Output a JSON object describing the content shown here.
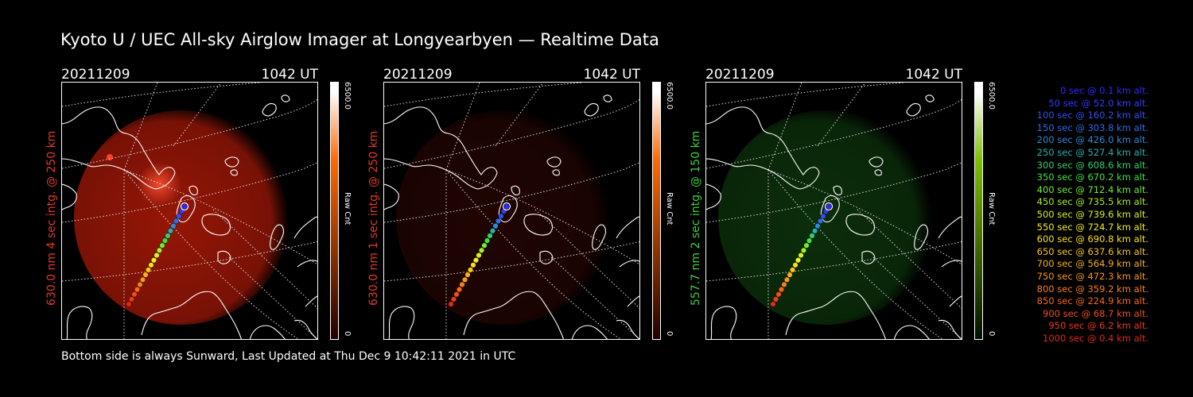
{
  "title": "Kyoto U / UEC All-sky Airglow Imager at Longyearbyen — Realtime Data",
  "footer": "Bottom side is always Sunward, Last Updated at Thu Dec  9 10:42:11 2021 in UTC",
  "panels": [
    {
      "date": "20211209",
      "time": "1042 UT",
      "side_label": "630.0 nm 4 sec intg. @ 250 km",
      "side_color": "#e03a2a",
      "glow_color": "#b01a08",
      "glow_strength": 0.85,
      "colorbar_max": "6500.0",
      "colorbar_min": "0",
      "colorbar_unit": "Raw Cnt",
      "colorbar_top": "#ffffff",
      "colorbar_mid": "#ff6a00",
      "colorbar_bottom": "#200000"
    },
    {
      "date": "20211209",
      "time": "1042 UT",
      "side_label": "630.0 nm 1 sec intg. @ 250 km",
      "side_color": "#e03a2a",
      "glow_color": "#3a0804",
      "glow_strength": 0.55,
      "colorbar_max": "6500.0",
      "colorbar_min": "0",
      "colorbar_unit": "Raw Cnt",
      "colorbar_top": "#ffffff",
      "colorbar_mid": "#ff6a00",
      "colorbar_bottom": "#200000"
    },
    {
      "date": "20211209",
      "time": "1042 UT",
      "side_label": "557.7 nm 2 sec intg. @ 150 km",
      "side_color": "#3cd23c",
      "glow_color": "#0e3a0e",
      "glow_strength": 0.8,
      "colorbar_max": "6500.0",
      "colorbar_min": "0",
      "colorbar_unit": "Raw Cnt",
      "colorbar_top": "#ffffff",
      "colorbar_mid": "#7dc000",
      "colorbar_bottom": "#001000"
    }
  ],
  "trajectory": [
    {
      "t": "0 sec",
      "alt": "0.1 km",
      "color": "#2b2bff"
    },
    {
      "t": "50 sec",
      "alt": "52.0 km",
      "color": "#2f3cff"
    },
    {
      "t": "100 sec",
      "alt": "160.2 km",
      "color": "#3050f0"
    },
    {
      "t": "150 sec",
      "alt": "303.8 km",
      "color": "#2f6ce8"
    },
    {
      "t": "200 sec",
      "alt": "426.0 km",
      "color": "#2d8ad8"
    },
    {
      "t": "250 sec",
      "alt": "527.4 km",
      "color": "#2ab0b0"
    },
    {
      "t": "300 sec",
      "alt": "608.6 km",
      "color": "#30d070"
    },
    {
      "t": "350 sec",
      "alt": "670.2 km",
      "color": "#40e040"
    },
    {
      "t": "400 sec",
      "alt": "712.4 km",
      "color": "#70ee30"
    },
    {
      "t": "450 sec",
      "alt": "735.5 km",
      "color": "#a8f020"
    },
    {
      "t": "500 sec",
      "alt": "739.6 km",
      "color": "#d8f020"
    },
    {
      "t": "550 sec",
      "alt": "724.7 km",
      "color": "#f0f020"
    },
    {
      "t": "600 sec",
      "alt": "690.8 km",
      "color": "#f8e020"
    },
    {
      "t": "650 sec",
      "alt": "637.6 km",
      "color": "#f8c818"
    },
    {
      "t": "700 sec",
      "alt": "564.9 km",
      "color": "#f8b018"
    },
    {
      "t": "750 sec",
      "alt": "472.3 km",
      "color": "#f89818"
    },
    {
      "t": "800 sec",
      "alt": "359.2 km",
      "color": "#f88018"
    },
    {
      "t": "850 sec",
      "alt": "224.9 km",
      "color": "#f86818"
    },
    {
      "t": "900 sec",
      "alt": "68.7 km",
      "color": "#f05018"
    },
    {
      "t": "950 sec",
      "alt": "6.2 km",
      "color": "#e83c18"
    },
    {
      "t": "1000 sec",
      "alt": "0.4 km",
      "color": "#e02a18"
    }
  ]
}
